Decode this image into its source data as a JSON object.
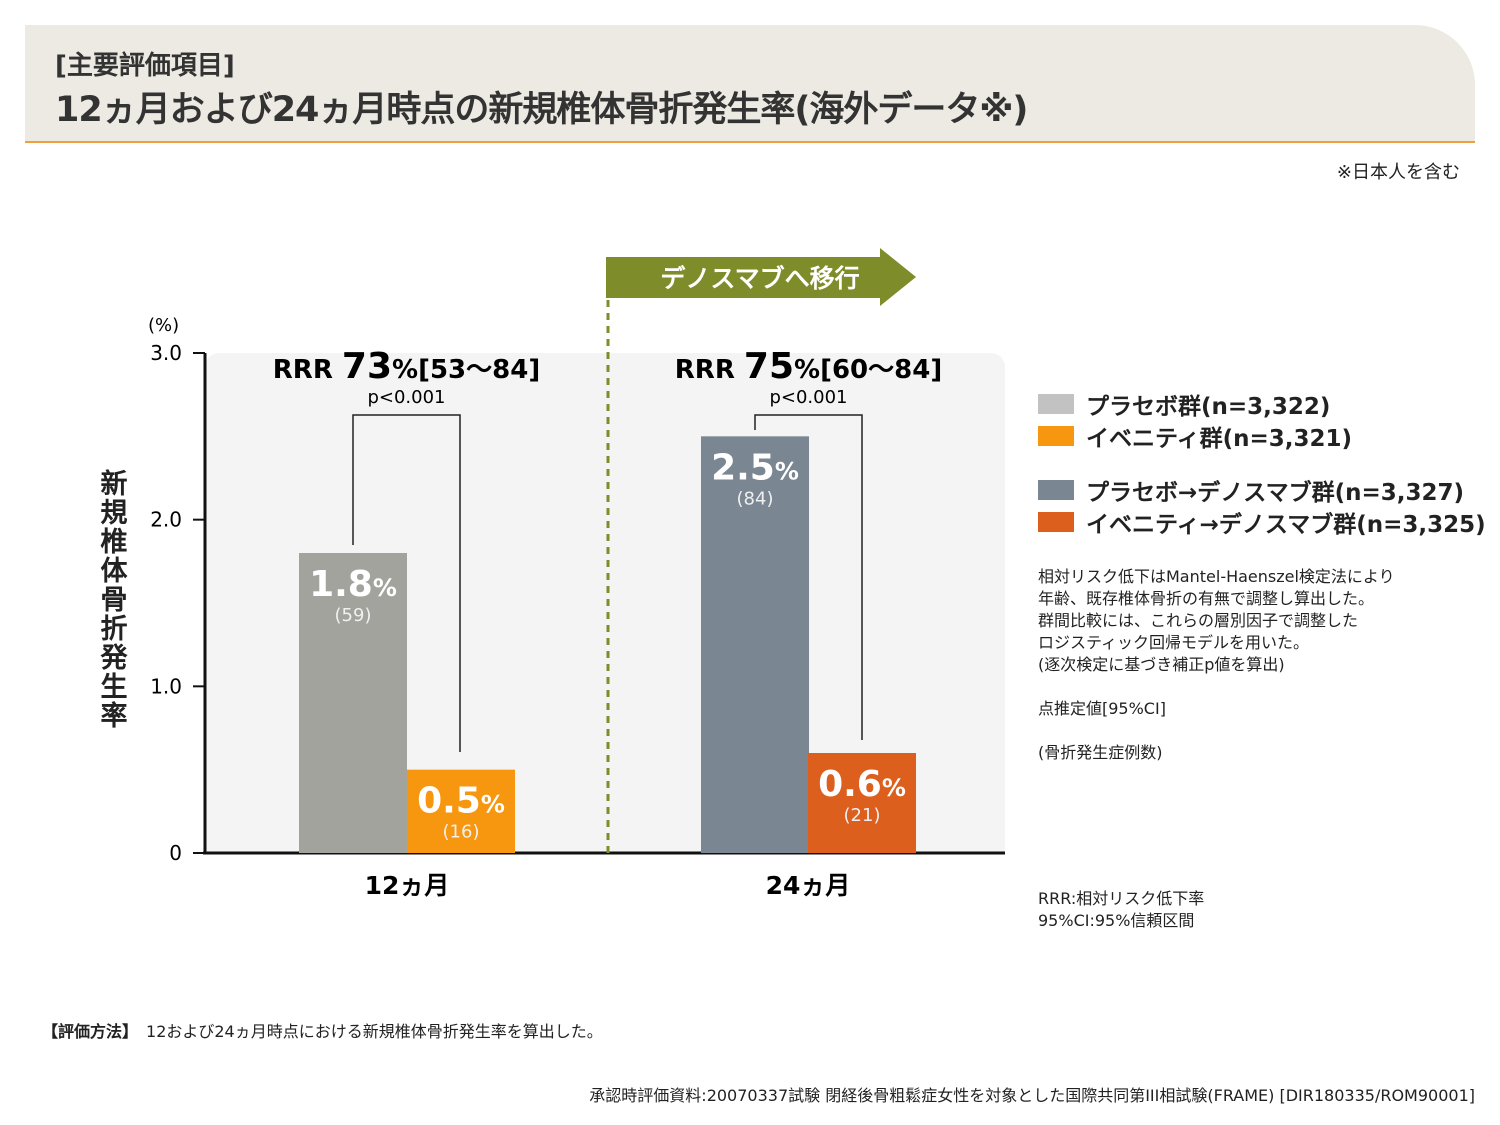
{
  "header": {
    "subtitle": "[主要評価項目]",
    "title": "12ヵ月および24ヵ月時点の新規椎体骨折発生率(海外データ※)"
  },
  "note_top": "※日本人を含む",
  "transition_label": "デノスマブへ移行",
  "chart_data": {
    "type": "bar",
    "ylabel": "新規椎体骨折発生率",
    "yunit": "(%)",
    "ylim": [
      0,
      3.0
    ],
    "yticks": [
      "0",
      "1.0",
      "2.0",
      "3.0"
    ],
    "categories": [
      "12ヵ月",
      "24ヵ月"
    ],
    "bars": [
      {
        "category": "12ヵ月",
        "group": "プラセボ群(n=3,322)",
        "value": 1.8,
        "label": "1.8",
        "count": "(59)",
        "color": "#a3a39e"
      },
      {
        "category": "12ヵ月",
        "group": "イベニティ群(n=3,321)",
        "value": 0.5,
        "label": "0.5",
        "count": "(16)",
        "color": "#f7960f"
      },
      {
        "category": "24ヵ月",
        "group": "プラセボ→デノスマブ群(n=3,327)",
        "value": 2.5,
        "label": "2.5",
        "count": "(84)",
        "color": "#7a8691"
      },
      {
        "category": "24ヵ月",
        "group": "イベニティ→デノスマブ群(n=3,325)",
        "value": 0.6,
        "label": "0.6",
        "count": "(21)",
        "color": "#dc5f1e"
      }
    ],
    "comparisons": [
      {
        "rrr_prefix": "RRR ",
        "rrr": "73",
        "ci": "%[53〜84]",
        "p": "p<0.001"
      },
      {
        "rrr_prefix": "RRR ",
        "rrr": "75",
        "ci": "%[60〜84]",
        "p": "p<0.001"
      }
    ],
    "legend": [
      {
        "label": "プラセボ群(n=3,322)",
        "color": "#c2c2c2"
      },
      {
        "label": "イベニティ群(n=3,321)",
        "color": "#f7960f"
      },
      {
        "label": "プラセボ→デノスマブ群(n=3,327)",
        "color": "#7a8691"
      },
      {
        "label": "イベニティ→デノスマブ群(n=3,325)",
        "color": "#dc5f1e"
      }
    ],
    "legend_placement": "right"
  },
  "notes": [
    "相対リスク低下はMantel-Haenszel検定法により",
    "年齢、既存椎体骨折の有無で調整し算出した。",
    "群間比較には、これらの層別因子で調整した",
    "ロジスティック回帰モデルを用いた。",
    "(逐次検定に基づき補正p値を算出)"
  ],
  "note_ci": "点推定値[95%CI]",
  "note_count": "(骨折発生症例数)",
  "abbreviations": [
    "RRR:相対リスク低下率",
    "95%CI:95%信頼区間"
  ],
  "method": {
    "label": "【評価方法】",
    "text": "12および24ヵ月時点における新規椎体骨折発生率を算出した。"
  },
  "source": "承認時評価資料:20070337試験 閉経後骨粗鬆症女性を対象とした国際共同第III相試験(FRAME) [DIR180335/ROM90001]"
}
